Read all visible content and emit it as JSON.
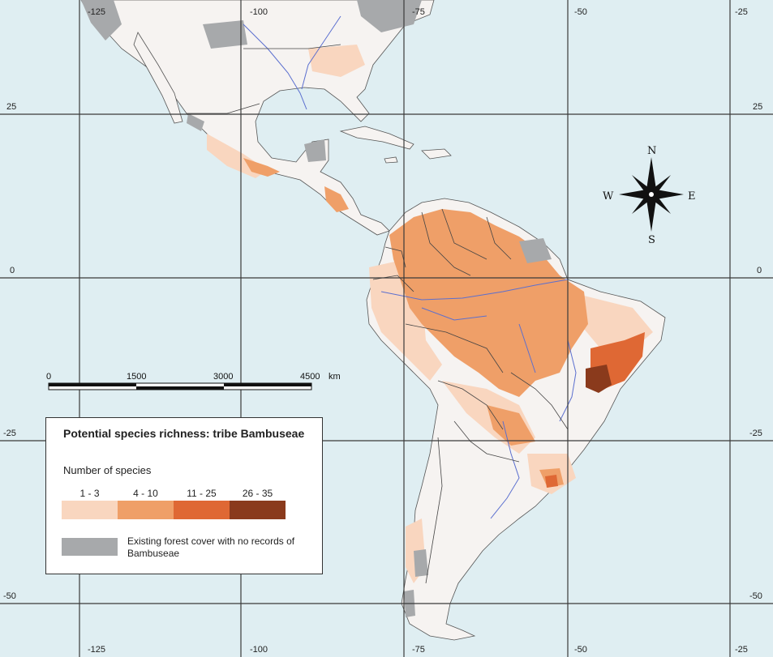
{
  "colors": {
    "ocean": "#dfeef2",
    "land": "#f6f3f1",
    "class1": "#f9d6bf",
    "class2": "#ef9f68",
    "class3": "#df6834",
    "class4": "#8a3a1c",
    "no_record": "#a7a9ab",
    "river": "#5b6fcf"
  },
  "graticule": {
    "longitude_labels": [
      "-125",
      "-100",
      "-75",
      "-50",
      "-25"
    ],
    "latitude_labels": [
      "25",
      "0",
      "-25",
      "-50"
    ]
  },
  "compass": {
    "north": "N",
    "south": "S",
    "east": "E",
    "west": "W"
  },
  "scale_bar": {
    "ticks": [
      "0",
      "1500",
      "3000",
      "4500"
    ],
    "unit": "km"
  },
  "legend": {
    "title": "Potential species richness: tribe Bambuseae",
    "subtitle": "Number of species",
    "classes": [
      {
        "label": "1 - 3",
        "color": "#f9d6bf"
      },
      {
        "label": "4 - 10",
        "color": "#ef9f68"
      },
      {
        "label": "11 - 25",
        "color": "#df6834"
      },
      {
        "label": "26 - 35",
        "color": "#8a3a1c"
      }
    ],
    "no_record_label": "Existing forest cover with no records of Bambuseae"
  }
}
